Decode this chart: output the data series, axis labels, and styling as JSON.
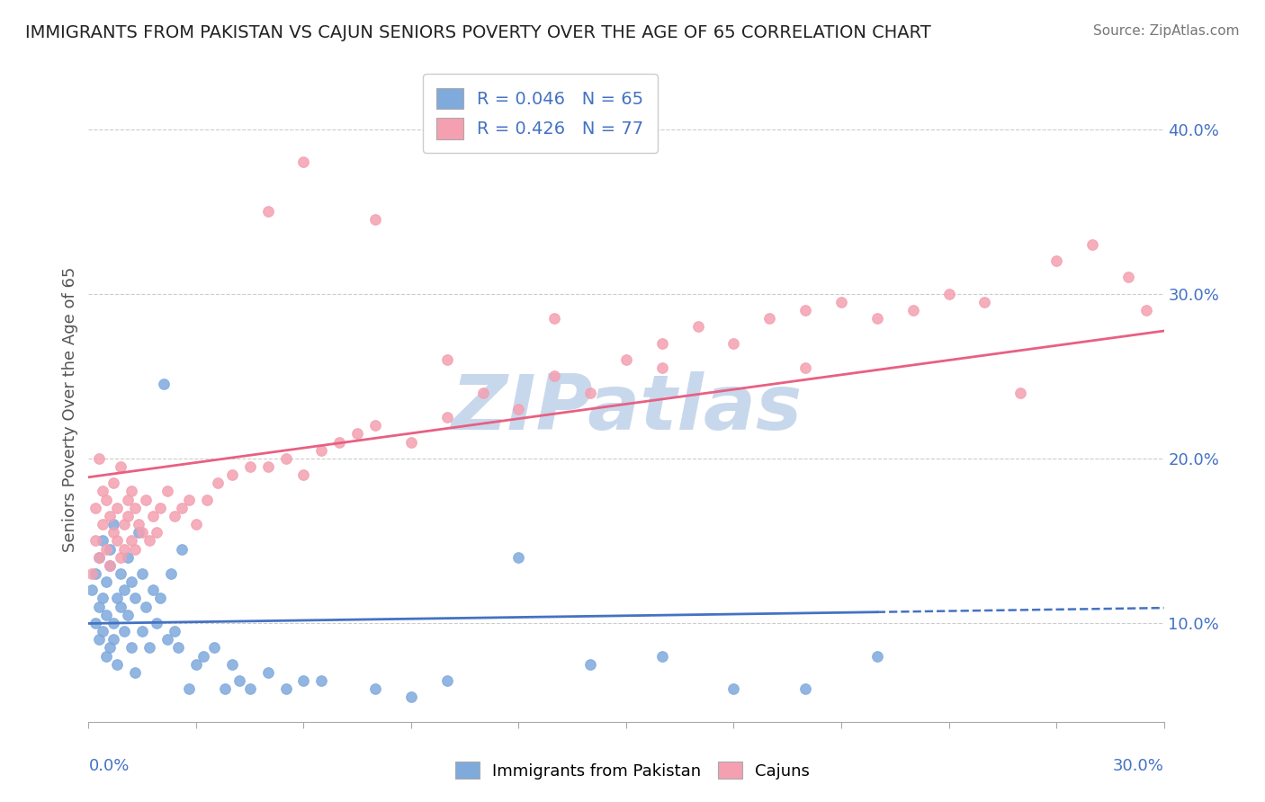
{
  "title": "IMMIGRANTS FROM PAKISTAN VS CAJUN SENIORS POVERTY OVER THE AGE OF 65 CORRELATION CHART",
  "source": "Source: ZipAtlas.com",
  "ylabel": "Seniors Poverty Over the Age of 65",
  "xlim": [
    0.0,
    0.3
  ],
  "ylim": [
    0.04,
    0.42
  ],
  "blue_R": "0.046",
  "blue_N": "65",
  "pink_R": "0.426",
  "pink_N": "77",
  "blue_color": "#7faadc",
  "pink_color": "#f4a0b0",
  "blue_line_color": "#4472c4",
  "pink_line_color": "#e86082",
  "watermark_color": "#c8d8ec",
  "legend_text_color": "#4472c4",
  "blue_scatter_x": [
    0.001,
    0.002,
    0.002,
    0.003,
    0.003,
    0.003,
    0.004,
    0.004,
    0.004,
    0.005,
    0.005,
    0.005,
    0.006,
    0.006,
    0.006,
    0.007,
    0.007,
    0.007,
    0.008,
    0.008,
    0.009,
    0.009,
    0.01,
    0.01,
    0.011,
    0.011,
    0.012,
    0.012,
    0.013,
    0.013,
    0.014,
    0.015,
    0.015,
    0.016,
    0.017,
    0.018,
    0.019,
    0.02,
    0.021,
    0.022,
    0.023,
    0.024,
    0.025,
    0.026,
    0.028,
    0.03,
    0.032,
    0.035,
    0.038,
    0.04,
    0.042,
    0.045,
    0.05,
    0.055,
    0.06,
    0.065,
    0.08,
    0.09,
    0.1,
    0.12,
    0.14,
    0.16,
    0.18,
    0.2,
    0.22
  ],
  "blue_scatter_y": [
    0.12,
    0.1,
    0.13,
    0.11,
    0.09,
    0.14,
    0.115,
    0.095,
    0.15,
    0.105,
    0.125,
    0.08,
    0.135,
    0.145,
    0.085,
    0.16,
    0.1,
    0.09,
    0.115,
    0.075,
    0.13,
    0.11,
    0.12,
    0.095,
    0.105,
    0.14,
    0.085,
    0.125,
    0.115,
    0.07,
    0.155,
    0.095,
    0.13,
    0.11,
    0.085,
    0.12,
    0.1,
    0.115,
    0.245,
    0.09,
    0.13,
    0.095,
    0.085,
    0.145,
    0.06,
    0.075,
    0.08,
    0.085,
    0.06,
    0.075,
    0.065,
    0.06,
    0.07,
    0.06,
    0.065,
    0.065,
    0.06,
    0.055,
    0.065,
    0.14,
    0.075,
    0.08,
    0.06,
    0.06,
    0.08
  ],
  "pink_scatter_x": [
    0.001,
    0.002,
    0.002,
    0.003,
    0.003,
    0.004,
    0.004,
    0.005,
    0.005,
    0.006,
    0.006,
    0.007,
    0.007,
    0.008,
    0.008,
    0.009,
    0.009,
    0.01,
    0.01,
    0.011,
    0.011,
    0.012,
    0.012,
    0.013,
    0.013,
    0.014,
    0.015,
    0.016,
    0.017,
    0.018,
    0.019,
    0.02,
    0.022,
    0.024,
    0.026,
    0.028,
    0.03,
    0.033,
    0.036,
    0.04,
    0.045,
    0.05,
    0.055,
    0.06,
    0.065,
    0.07,
    0.075,
    0.08,
    0.09,
    0.1,
    0.11,
    0.12,
    0.13,
    0.14,
    0.15,
    0.16,
    0.17,
    0.18,
    0.19,
    0.2,
    0.21,
    0.22,
    0.23,
    0.24,
    0.25,
    0.26,
    0.27,
    0.28,
    0.29,
    0.295,
    0.05,
    0.06,
    0.08,
    0.1,
    0.13,
    0.16,
    0.2
  ],
  "pink_scatter_y": [
    0.13,
    0.15,
    0.17,
    0.14,
    0.2,
    0.16,
    0.18,
    0.145,
    0.175,
    0.135,
    0.165,
    0.155,
    0.185,
    0.15,
    0.17,
    0.14,
    0.195,
    0.16,
    0.145,
    0.175,
    0.165,
    0.15,
    0.18,
    0.145,
    0.17,
    0.16,
    0.155,
    0.175,
    0.15,
    0.165,
    0.155,
    0.17,
    0.18,
    0.165,
    0.17,
    0.175,
    0.16,
    0.175,
    0.185,
    0.19,
    0.195,
    0.195,
    0.2,
    0.19,
    0.205,
    0.21,
    0.215,
    0.22,
    0.21,
    0.225,
    0.24,
    0.23,
    0.25,
    0.24,
    0.26,
    0.27,
    0.28,
    0.27,
    0.285,
    0.29,
    0.295,
    0.285,
    0.29,
    0.3,
    0.295,
    0.24,
    0.32,
    0.33,
    0.31,
    0.29,
    0.35,
    0.38,
    0.345,
    0.26,
    0.285,
    0.255,
    0.255
  ]
}
